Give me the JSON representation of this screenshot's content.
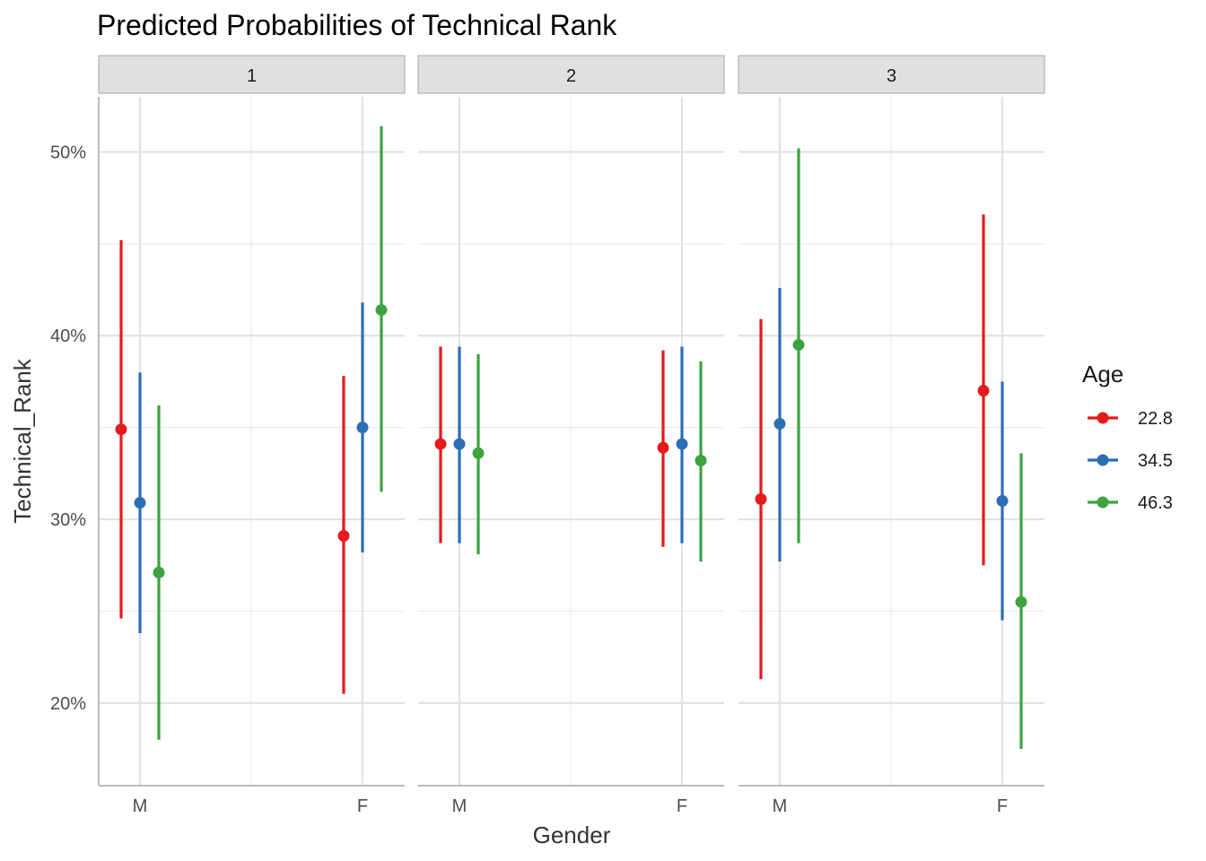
{
  "chart_data": {
    "type": "scatter",
    "title": "Predicted Probabilities of Technical Rank",
    "xlabel": "Gender",
    "ylabel": "Technical_Rank",
    "categories": [
      "M",
      "F"
    ],
    "facets": [
      "1",
      "2",
      "3"
    ],
    "y_ticks": [
      0.2,
      0.3,
      0.4,
      0.5
    ],
    "y_tick_labels": [
      "20%",
      "30%",
      "40%",
      "50%"
    ],
    "ylim": [
      0.155,
      0.53
    ],
    "grid": true,
    "legend": {
      "title": "Age",
      "placement": "right",
      "entries": [
        "22.8",
        "34.5",
        "46.3"
      ]
    },
    "series": [
      {
        "name": "22.8",
        "color": "#e41a1c",
        "facet_values": [
          {
            "facet": "1",
            "points": [
              {
                "x": "M",
                "y": 0.349,
                "lo": 0.246,
                "hi": 0.452
              },
              {
                "x": "F",
                "y": 0.291,
                "lo": 0.205,
                "hi": 0.378
              }
            ]
          },
          {
            "facet": "2",
            "points": [
              {
                "x": "M",
                "y": 0.341,
                "lo": 0.287,
                "hi": 0.394
              },
              {
                "x": "F",
                "y": 0.339,
                "lo": 0.285,
                "hi": 0.392
              }
            ]
          },
          {
            "facet": "3",
            "points": [
              {
                "x": "M",
                "y": 0.311,
                "lo": 0.213,
                "hi": 0.409
              },
              {
                "x": "F",
                "y": 0.37,
                "lo": 0.275,
                "hi": 0.466
              }
            ]
          }
        ]
      },
      {
        "name": "34.5",
        "color": "#2c6fb5",
        "facet_values": [
          {
            "facet": "1",
            "points": [
              {
                "x": "M",
                "y": 0.309,
                "lo": 0.238,
                "hi": 0.38
              },
              {
                "x": "F",
                "y": 0.35,
                "lo": 0.282,
                "hi": 0.418
              }
            ]
          },
          {
            "facet": "2",
            "points": [
              {
                "x": "M",
                "y": 0.341,
                "lo": 0.287,
                "hi": 0.394
              },
              {
                "x": "F",
                "y": 0.341,
                "lo": 0.287,
                "hi": 0.394
              }
            ]
          },
          {
            "facet": "3",
            "points": [
              {
                "x": "M",
                "y": 0.352,
                "lo": 0.277,
                "hi": 0.426
              },
              {
                "x": "F",
                "y": 0.31,
                "lo": 0.245,
                "hi": 0.375
              }
            ]
          }
        ]
      },
      {
        "name": "46.3",
        "color": "#3ea33e",
        "facet_values": [
          {
            "facet": "1",
            "points": [
              {
                "x": "M",
                "y": 0.271,
                "lo": 0.18,
                "hi": 0.362
              },
              {
                "x": "F",
                "y": 0.414,
                "lo": 0.315,
                "hi": 0.514
              }
            ]
          },
          {
            "facet": "2",
            "points": [
              {
                "x": "M",
                "y": 0.336,
                "lo": 0.281,
                "hi": 0.39
              },
              {
                "x": "F",
                "y": 0.332,
                "lo": 0.277,
                "hi": 0.386
              }
            ]
          },
          {
            "facet": "3",
            "points": [
              {
                "x": "M",
                "y": 0.395,
                "lo": 0.287,
                "hi": 0.502
              },
              {
                "x": "F",
                "y": 0.255,
                "lo": 0.175,
                "hi": 0.336
              }
            ]
          }
        ]
      }
    ]
  }
}
